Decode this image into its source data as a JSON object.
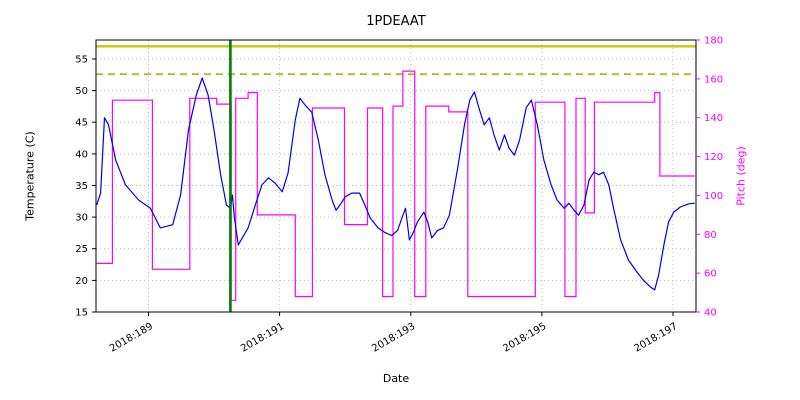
{
  "chart_data": {
    "type": "line",
    "title": "1PDEAAT",
    "xlabel": "Date",
    "ylabel_left": "Temperature (C)",
    "ylabel_right": "Pitch (deg)",
    "axis_colors": {
      "left": "#000000",
      "right": "#ff00ff"
    },
    "grid": true,
    "grid_color": "#bbbbbb",
    "xlim": [
      188.2,
      197.35
    ],
    "ylim_left": [
      15,
      58
    ],
    "ylim_right": [
      40,
      180
    ],
    "xticks": [
      189,
      191,
      193,
      195,
      197
    ],
    "xtick_labels": [
      "2018:189",
      "2018:191",
      "2018:193",
      "2018:195",
      "2018:197"
    ],
    "yticks_left": [
      15,
      20,
      25,
      30,
      35,
      40,
      45,
      50,
      55
    ],
    "yticks_right": [
      40,
      60,
      80,
      100,
      120,
      140,
      160,
      180
    ],
    "limit_lines": [
      {
        "name": "upper-limit-solid",
        "value": 57.0,
        "style": "solid",
        "color": "#c8c800",
        "width": 2.4,
        "axis": "left"
      },
      {
        "name": "caution-limit-dashed",
        "value": 52.6,
        "style": "dashed",
        "color": "#b5b52e",
        "width": 1.8,
        "axis": "left"
      }
    ],
    "event_line": {
      "x": 190.25,
      "color": "#008000",
      "width": 2.6
    },
    "series": [
      {
        "name": "temperature",
        "color": "#0000ee",
        "axis": "left",
        "width": 1.2,
        "x": [
          188.21,
          188.27,
          188.33,
          188.39,
          188.5,
          188.65,
          188.85,
          189.03,
          189.18,
          189.37,
          189.49,
          189.61,
          189.73,
          189.82,
          189.91,
          190.0,
          190.1,
          190.19,
          190.25,
          190.28,
          190.31,
          190.37,
          190.43,
          190.52,
          190.63,
          190.73,
          190.83,
          190.93,
          191.04,
          191.13,
          191.24,
          191.31,
          191.39,
          191.49,
          191.59,
          191.69,
          191.8,
          191.86,
          191.92,
          192.0,
          192.1,
          192.22,
          192.3,
          192.38,
          192.5,
          192.6,
          192.71,
          192.8,
          192.88,
          192.92,
          192.98,
          193.04,
          193.1,
          193.2,
          193.26,
          193.32,
          193.41,
          193.5,
          193.59,
          193.71,
          193.82,
          193.9,
          193.97,
          194.05,
          194.12,
          194.2,
          194.27,
          194.35,
          194.43,
          194.5,
          194.58,
          194.66,
          194.76,
          194.84,
          194.93,
          195.03,
          195.14,
          195.23,
          195.34,
          195.41,
          195.49,
          195.56,
          195.64,
          195.72,
          195.79,
          195.87,
          195.94,
          196.02,
          196.1,
          196.2,
          196.32,
          196.45,
          196.55,
          196.66,
          196.72,
          196.78,
          196.86,
          196.93,
          197.01,
          197.11,
          197.24,
          197.33
        ],
        "y": [
          31.9,
          33.8,
          45.7,
          44.6,
          39.0,
          35.1,
          32.7,
          31.4,
          28.3,
          28.8,
          33.5,
          43.8,
          49.3,
          52.0,
          49.3,
          43.8,
          36.7,
          31.9,
          31.4,
          33.5,
          29.9,
          25.6,
          26.7,
          28.3,
          31.9,
          35.1,
          36.2,
          35.4,
          34.0,
          37.0,
          45.4,
          48.8,
          47.7,
          46.6,
          42.2,
          36.7,
          32.7,
          31.1,
          31.9,
          33.2,
          33.8,
          33.8,
          31.9,
          29.9,
          28.3,
          27.6,
          27.1,
          27.9,
          30.3,
          31.4,
          26.4,
          27.6,
          29.2,
          30.8,
          29.2,
          26.7,
          27.9,
          28.3,
          30.3,
          37.4,
          44.6,
          48.5,
          49.8,
          46.9,
          44.6,
          45.7,
          43.0,
          40.6,
          43.0,
          40.9,
          39.8,
          42.2,
          47.3,
          48.5,
          44.6,
          39.0,
          35.1,
          32.7,
          31.4,
          32.2,
          31.1,
          30.3,
          31.9,
          35.9,
          37.1,
          36.7,
          37.1,
          35.1,
          31.1,
          26.4,
          23.2,
          21.3,
          20.0,
          18.9,
          18.5,
          20.8,
          25.6,
          29.2,
          30.8,
          31.6,
          32.1,
          32.2
        ]
      },
      {
        "name": "pitch",
        "color": "#ff00ff",
        "axis": "right",
        "width": 1.2,
        "steps": [
          [
            188.21,
            188.45,
            65
          ],
          [
            188.45,
            189.06,
            149
          ],
          [
            189.06,
            189.63,
            62
          ],
          [
            189.63,
            190.04,
            150
          ],
          [
            190.04,
            190.26,
            147
          ],
          [
            190.26,
            190.33,
            46
          ],
          [
            190.33,
            190.52,
            150
          ],
          [
            190.52,
            190.66,
            153
          ],
          [
            190.66,
            191.24,
            90
          ],
          [
            191.24,
            191.5,
            48
          ],
          [
            191.5,
            191.99,
            145
          ],
          [
            191.99,
            192.34,
            85
          ],
          [
            192.34,
            192.57,
            145
          ],
          [
            192.57,
            192.73,
            48
          ],
          [
            192.73,
            192.88,
            146
          ],
          [
            192.88,
            193.06,
            164
          ],
          [
            193.06,
            193.23,
            48
          ],
          [
            193.23,
            193.58,
            146
          ],
          [
            193.58,
            193.87,
            143
          ],
          [
            193.87,
            194.9,
            48
          ],
          [
            194.9,
            195.35,
            148
          ],
          [
            195.35,
            195.52,
            48
          ],
          [
            195.52,
            195.66,
            150
          ],
          [
            195.66,
            195.8,
            91
          ],
          [
            195.8,
            196.72,
            148
          ],
          [
            196.72,
            196.8,
            153
          ],
          [
            196.8,
            197.33,
            110
          ]
        ]
      }
    ]
  }
}
